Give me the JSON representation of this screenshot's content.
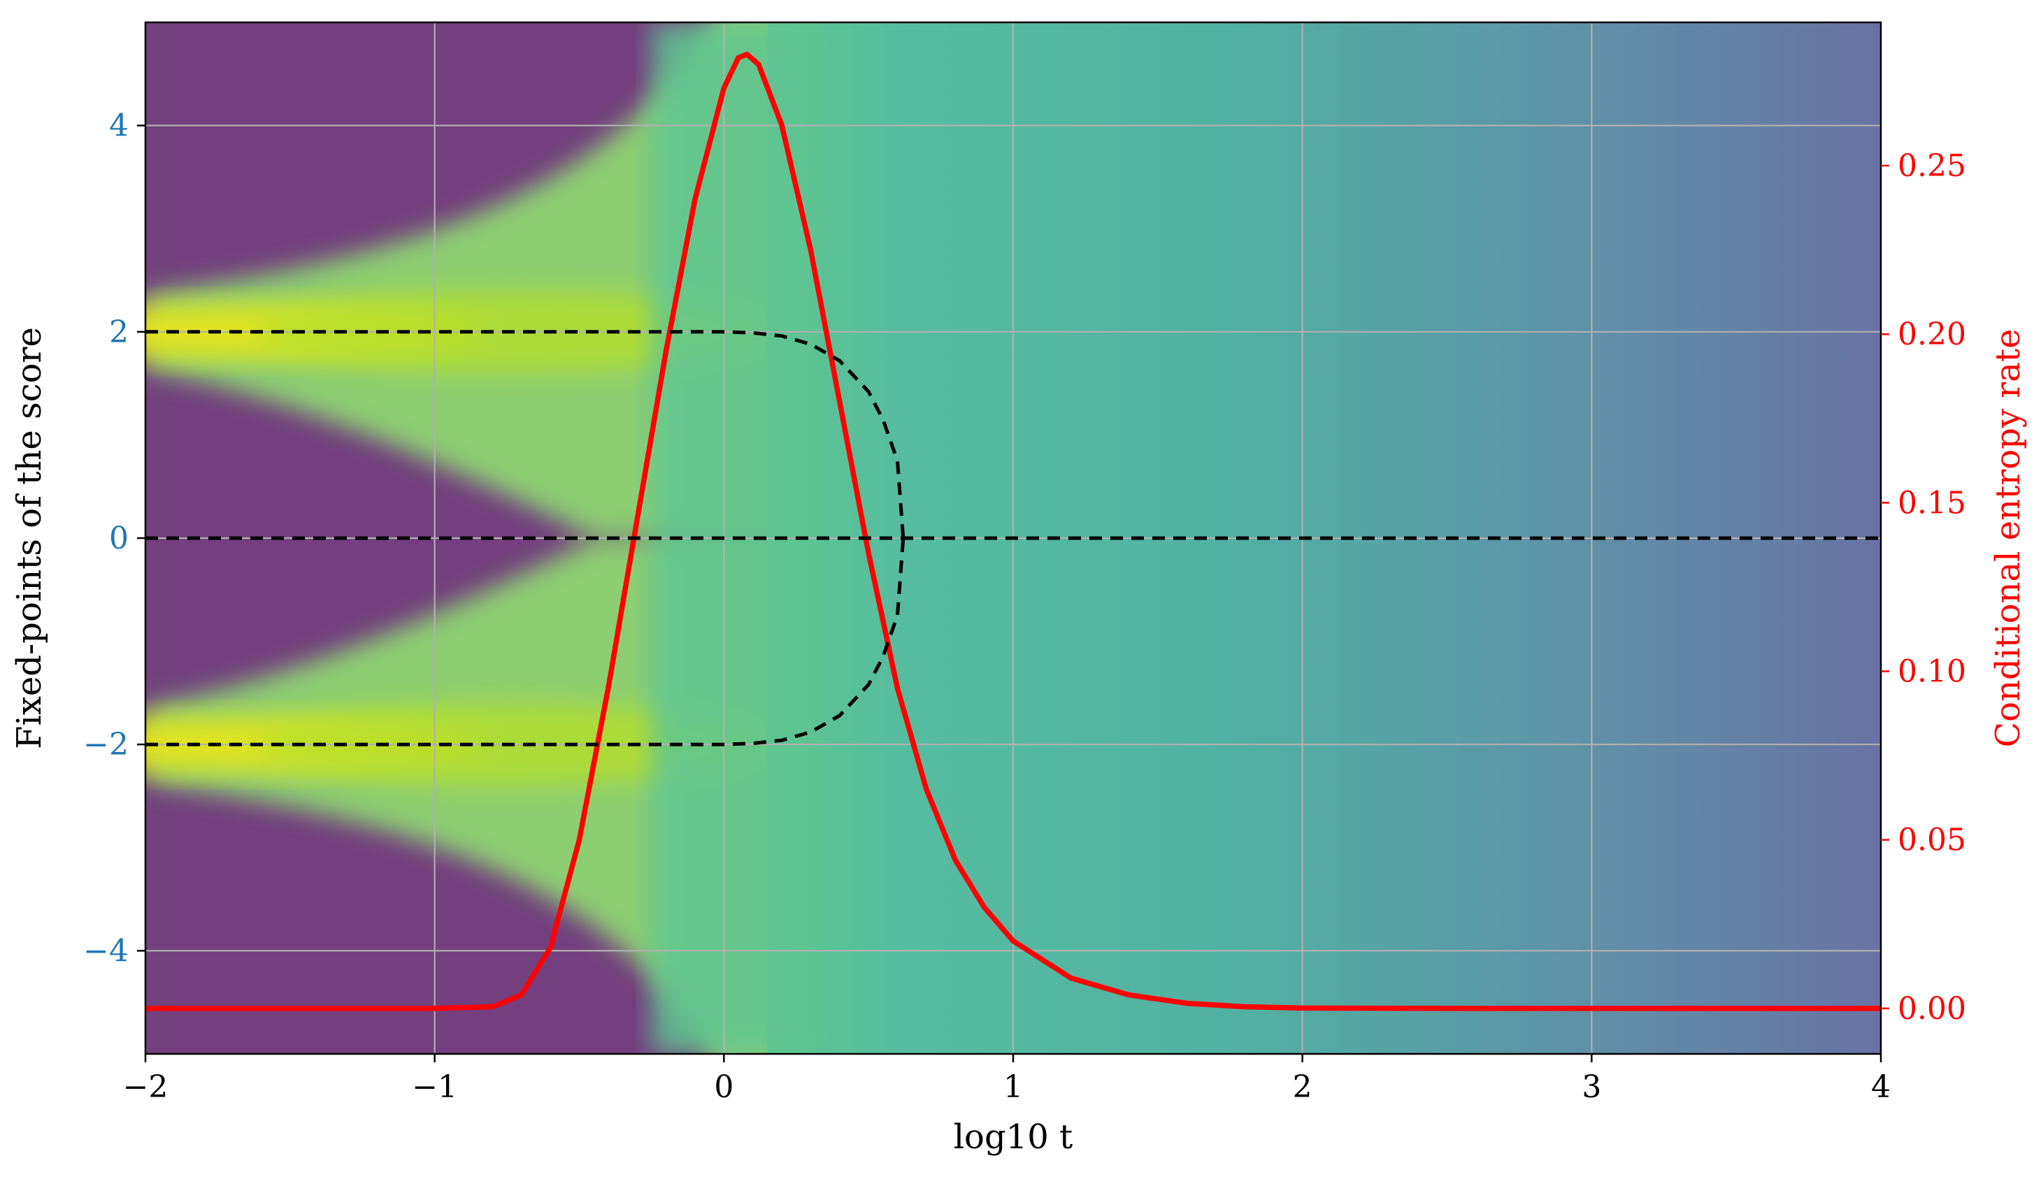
{
  "chart_data": {
    "type": "line",
    "xlabel": "log10 t",
    "ylabel_left": "Fixed-points of the score",
    "ylabel_right": "Conditional entropy rate",
    "xlim": [
      -2,
      4
    ],
    "ylim_left": [
      -5,
      5
    ],
    "ylim_right": [
      -0.0135,
      0.2925
    ],
    "x_ticks": [
      -2,
      -1,
      0,
      1,
      2,
      3,
      4
    ],
    "x_tick_labels": [
      "−2",
      "−1",
      "0",
      "1",
      "2",
      "3",
      "4"
    ],
    "y_left_ticks": [
      -4,
      -2,
      0,
      2,
      4
    ],
    "y_left_tick_labels": [
      "−4",
      "−2",
      "0",
      "2",
      "4"
    ],
    "y_right_ticks": [
      0.0,
      0.05,
      0.1,
      0.15,
      0.2,
      0.25
    ],
    "y_right_tick_labels": [
      "0.00",
      "0.05",
      "0.10",
      "0.15",
      "0.20",
      "0.25"
    ],
    "grid": true,
    "colors": {
      "left_axis": "#1f77b4",
      "right_axis": "#ff0000",
      "entropy_line": "#ff0000",
      "fixed_points": "#000000",
      "grid": "#b0b0b0"
    },
    "background_heatmap": {
      "colormap": "viridis",
      "modes": [
        -2,
        2
      ]
    },
    "series": [
      {
        "axis": "right",
        "style": "solid",
        "color": "#ff0000",
        "x": [
          -2.0,
          -1.0,
          -0.8,
          -0.7,
          -0.6,
          -0.5,
          -0.4,
          -0.3,
          -0.2,
          -0.1,
          0.0,
          0.05,
          0.08,
          0.12,
          0.2,
          0.3,
          0.4,
          0.5,
          0.6,
          0.7,
          0.8,
          0.9,
          1.0,
          1.2,
          1.4,
          1.6,
          1.8,
          2.0,
          2.5,
          3.0,
          4.0
        ],
        "values": [
          0.0,
          0.0,
          0.0005,
          0.004,
          0.018,
          0.05,
          0.095,
          0.145,
          0.195,
          0.24,
          0.273,
          0.282,
          0.283,
          0.28,
          0.262,
          0.225,
          0.18,
          0.135,
          0.095,
          0.065,
          0.044,
          0.03,
          0.02,
          0.009,
          0.004,
          0.0015,
          0.0005,
          0.0001,
          0.0,
          0.0,
          0.0
        ]
      },
      {
        "axis": "left",
        "style": "dashed",
        "color": "#000000",
        "x": [
          -2.0,
          -1.0,
          0.0,
          0.1,
          0.2,
          0.3,
          0.4,
          0.5,
          0.55,
          0.6,
          0.62
        ],
        "values": [
          2.0,
          2.0,
          2.0,
          1.99,
          1.96,
          1.88,
          1.72,
          1.42,
          1.15,
          0.75,
          0.0
        ]
      },
      {
        "axis": "left",
        "style": "dashed",
        "color": "#000000",
        "x": [
          -2.0,
          -1.0,
          0.0,
          0.1,
          0.2,
          0.3,
          0.4,
          0.5,
          0.55,
          0.6,
          0.62
        ],
        "values": [
          -2.0,
          -2.0,
          -2.0,
          -1.99,
          -1.96,
          -1.88,
          -1.72,
          -1.42,
          -1.15,
          -0.75,
          0.0
        ]
      },
      {
        "axis": "left",
        "style": "dashed",
        "color": "#000000",
        "x": [
          -2.0,
          4.0
        ],
        "values": [
          0.0,
          0.0
        ]
      }
    ]
  }
}
